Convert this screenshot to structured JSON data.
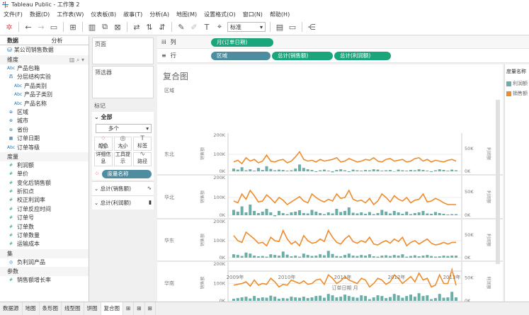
{
  "window": {
    "title": "Tableau Public - 工作簿 2"
  },
  "menu": [
    "文件(F)",
    "数据(D)",
    "工作表(W)",
    "仪表板(B)",
    "故事(T)",
    "分析(A)",
    "地图(M)",
    "设置格式(O)",
    "窗口(N)",
    "帮助(H)"
  ],
  "toolbar": {
    "label_select": "标准"
  },
  "left_panel": {
    "tabs": [
      "数据",
      "分析"
    ],
    "datasource": "某公司销售数据",
    "dimensions_header": "维度",
    "dimensions": [
      {
        "icon": "Abc",
        "label": "产品包箱",
        "indent": 0
      },
      {
        "icon": "品",
        "label": "分层结构实验",
        "indent": 0
      },
      {
        "icon": "Abc",
        "label": "产品类别",
        "indent": 1
      },
      {
        "icon": "Abc",
        "label": "产品子类别",
        "indent": 1
      },
      {
        "icon": "Abc",
        "label": "产品名称",
        "indent": 1
      },
      {
        "icon": "⊕",
        "label": "区域",
        "indent": 0
      },
      {
        "icon": "⊕",
        "label": "城市",
        "indent": 0
      },
      {
        "icon": "⊕",
        "label": "省份",
        "indent": 0
      },
      {
        "icon": "▦",
        "label": "订单日期",
        "indent": 0
      },
      {
        "icon": "Abc",
        "label": "订单等级",
        "indent": 0
      }
    ],
    "measures_header": "度量",
    "measures": [
      "利润额",
      "单价",
      "变化后销售额",
      "折扣点",
      "校正利润率",
      "订单反应时间",
      "订单号",
      "订单数",
      "订单数量",
      "运输成本"
    ],
    "sets_header": "集",
    "sets": [
      "负利润产品"
    ],
    "params_header": "参数",
    "params": [
      "销售额增长率"
    ]
  },
  "cards": {
    "pages": "页面",
    "filters": "筛选器",
    "marks": "标记",
    "all": "全部",
    "mark_type": "多个",
    "buttons": [
      "颜色",
      "大小",
      "标签",
      "详细信息",
      "工具提示",
      "路径"
    ],
    "color_pill": "度量名称",
    "sections": [
      "总计(销售额)",
      "总计(利润额)"
    ]
  },
  "shelves": {
    "columns_label": "列",
    "columns": [
      "月(订单日期)"
    ],
    "rows_label": "行",
    "rows": [
      "区域",
      "总计(销售额)",
      "总计(利润额)"
    ]
  },
  "viz": {
    "title": "复合图",
    "region_header": "区域",
    "x_label": "订单日期 月",
    "left_axis_label": "销售额",
    "right_axis_label": "利润额"
  },
  "legend": {
    "title": "度量名称",
    "items": [
      {
        "label": "利润额",
        "color": "#6aaea8"
      },
      {
        "label": "销售额",
        "color": "#ee8c2d"
      }
    ]
  },
  "tabs": [
    "数据源",
    "地图",
    "条形图",
    "线型图",
    "饼图",
    "复合图"
  ],
  "chart_data": {
    "type": "line",
    "title": "复合图",
    "xlabel": "订单日期 月",
    "x_ticks": [
      "2009年",
      "2010年",
      "2011年",
      "2012年",
      "2013年"
    ],
    "panels": [
      {
        "region": "东北",
        "y_ticks": [
          "0K",
          "100K",
          "200K"
        ],
        "y2_ticks": [
          "0K",
          "50K"
        ],
        "sales": [
          55,
          65,
          45,
          80,
          60,
          70,
          50,
          60,
          95,
          60,
          55,
          65,
          70,
          50,
          60,
          85,
          115,
          70,
          60,
          65,
          55,
          70,
          60,
          65,
          70,
          80,
          55,
          60,
          75,
          65,
          55,
          60,
          70,
          65,
          80,
          60,
          55,
          70,
          75,
          60,
          65,
          70,
          55,
          60,
          75,
          80,
          60,
          70,
          55,
          65,
          60,
          55,
          65,
          70,
          60
        ],
        "profit": [
          8,
          5,
          12,
          3,
          6,
          2,
          10,
          4,
          15,
          7,
          3,
          5,
          4,
          2,
          3,
          8,
          20,
          10,
          6,
          4,
          -2,
          3,
          5,
          2,
          -3,
          4,
          6,
          3,
          -2,
          5,
          3,
          2,
          4,
          3,
          6,
          5,
          2,
          3,
          4,
          -1,
          5,
          3,
          2,
          4,
          3,
          6,
          4,
          2,
          -2,
          3,
          6,
          4,
          2,
          5,
          3
        ]
      },
      {
        "region": "华北",
        "y_ticks": [
          "0K",
          "100K",
          "200K"
        ],
        "y2_ticks": [
          "0K",
          "50K"
        ],
        "sales": [
          80,
          70,
          120,
          90,
          140,
          110,
          75,
          80,
          115,
          95,
          70,
          100,
          85,
          60,
          75,
          90,
          105,
          80,
          70,
          120,
          100,
          85,
          75,
          90,
          80,
          120,
          95,
          100,
          140,
          90,
          80,
          85,
          70,
          95,
          60,
          80,
          120,
          100,
          75,
          110,
          90,
          80,
          100,
          70,
          85,
          90,
          120,
          75,
          80,
          95,
          85,
          70,
          60,
          60,
          60
        ],
        "profit": [
          15,
          10,
          25,
          8,
          30,
          12,
          6,
          10,
          18,
          8,
          -3,
          12,
          6,
          3,
          8,
          10,
          14,
          6,
          5,
          15,
          10,
          6,
          3,
          8,
          5,
          18,
          9,
          12,
          22,
          7,
          5,
          8,
          4,
          9,
          3,
          6,
          15,
          10,
          5,
          12,
          8,
          4,
          10,
          3,
          6,
          8,
          12,
          5,
          4,
          9,
          6,
          4,
          2,
          3,
          3
        ]
      },
      {
        "region": "华东",
        "y_ticks": [
          "0K",
          "100K",
          "200K"
        ],
        "y2_ticks": [
          "0K",
          "50K"
        ],
        "sales": [
          130,
          100,
          90,
          150,
          130,
          110,
          85,
          90,
          70,
          120,
          100,
          95,
          160,
          110,
          80,
          95,
          70,
          130,
          100,
          85,
          90,
          110,
          95,
          160,
          120,
          90,
          80,
          110,
          130,
          95,
          85,
          100,
          90,
          120,
          80,
          75,
          90,
          100,
          85,
          110,
          95,
          120,
          70,
          90,
          100,
          80,
          95,
          110,
          85,
          75,
          80,
          90,
          80,
          90,
          90
        ],
        "profit": [
          10,
          8,
          5,
          15,
          12,
          6,
          4,
          5,
          3,
          10,
          8,
          6,
          18,
          9,
          4,
          6,
          3,
          12,
          8,
          5,
          6,
          10,
          7,
          20,
          11,
          5,
          4,
          8,
          12,
          6,
          5,
          8,
          6,
          10,
          4,
          3,
          6,
          7,
          5,
          8,
          6,
          10,
          3,
          5,
          7,
          4,
          6,
          8,
          5,
          3,
          4,
          6,
          5,
          6,
          6
        ]
      },
      {
        "region": "华南",
        "y_ticks": [
          "0K",
          "100K",
          "200K"
        ],
        "y2_ticks": [
          "0K",
          "50K"
        ],
        "sales": [
          90,
          95,
          100,
          110,
          85,
          120,
          90,
          100,
          95,
          130,
          110,
          80,
          95,
          90,
          120,
          110,
          100,
          115,
          95,
          100,
          120,
          125,
          95,
          150,
          130,
          100,
          115,
          140,
          120,
          110,
          100,
          130,
          120,
          80,
          100,
          130,
          120,
          95,
          110,
          150,
          130,
          100,
          120,
          140,
          110,
          160,
          120,
          130,
          80,
          90,
          150,
          100,
          100,
          180,
          90
        ],
        "profit": [
          6,
          8,
          10,
          12,
          7,
          14,
          8,
          10,
          9,
          15,
          12,
          6,
          8,
          7,
          12,
          10,
          9,
          12,
          8,
          10,
          14,
          15,
          9,
          20,
          16,
          10,
          12,
          18,
          14,
          11,
          9,
          16,
          14,
          5,
          10,
          16,
          14,
          8,
          11,
          20,
          16,
          9,
          14,
          18,
          12,
          22,
          14,
          16,
          5,
          8,
          20,
          9,
          10,
          26,
          10
        ]
      }
    ]
  }
}
